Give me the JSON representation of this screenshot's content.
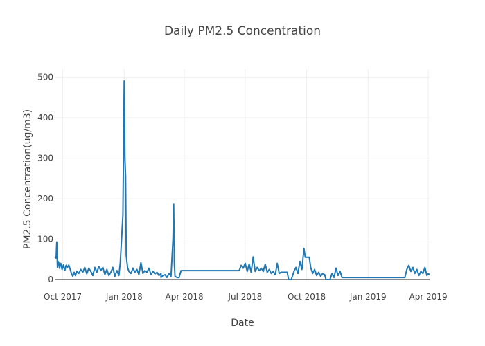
{
  "chart_data": {
    "type": "line",
    "title": "Daily PM2.5 Concentration",
    "xlabel": "Date",
    "ylabel": "PM2.5 Concentration(ug/m3)",
    "xlim": [
      "2017-09-20",
      "2019-04-03"
    ],
    "ylim": [
      0,
      520
    ],
    "grid": true,
    "x_ticks": [
      {
        "date": "2017-10-01",
        "label": "Oct 2017"
      },
      {
        "date": "2018-01-01",
        "label": "Jan 2018"
      },
      {
        "date": "2018-04-01",
        "label": "Apr 2018"
      },
      {
        "date": "2018-07-01",
        "label": "Jul 2018"
      },
      {
        "date": "2018-10-01",
        "label": "Oct 2018"
      },
      {
        "date": "2019-01-01",
        "label": "Jan 2019"
      },
      {
        "date": "2019-04-01",
        "label": "Apr 2019"
      }
    ],
    "y_ticks": [
      0,
      100,
      200,
      300,
      400,
      500
    ],
    "series": [
      {
        "color": "#1f77b4",
        "points": [
          [
            "2017-09-20",
            55
          ],
          [
            "2017-09-21",
            53
          ],
          [
            "2017-09-22",
            93
          ],
          [
            "2017-09-23",
            30
          ],
          [
            "2017-09-24",
            45
          ],
          [
            "2017-09-25",
            42
          ],
          [
            "2017-09-26",
            28
          ],
          [
            "2017-09-28",
            40
          ],
          [
            "2017-09-30",
            25
          ],
          [
            "2017-10-02",
            36
          ],
          [
            "2017-10-04",
            22
          ],
          [
            "2017-10-06",
            35
          ],
          [
            "2017-10-08",
            30
          ],
          [
            "2017-10-10",
            36
          ],
          [
            "2017-10-12",
            26
          ],
          [
            "2017-10-14",
            15
          ],
          [
            "2017-10-16",
            8
          ],
          [
            "2017-10-18",
            18
          ],
          [
            "2017-10-20",
            10
          ],
          [
            "2017-10-22",
            20
          ],
          [
            "2017-10-25",
            15
          ],
          [
            "2017-10-28",
            25
          ],
          [
            "2017-10-31",
            18
          ],
          [
            "2017-11-03",
            30
          ],
          [
            "2017-11-06",
            14
          ],
          [
            "2017-11-09",
            28
          ],
          [
            "2017-11-12",
            20
          ],
          [
            "2017-11-15",
            10
          ],
          [
            "2017-11-18",
            30
          ],
          [
            "2017-11-21",
            18
          ],
          [
            "2017-11-24",
            32
          ],
          [
            "2017-11-27",
            22
          ],
          [
            "2017-11-30",
            30
          ],
          [
            "2017-12-03",
            12
          ],
          [
            "2017-12-06",
            25
          ],
          [
            "2017-12-09",
            10
          ],
          [
            "2017-12-12",
            18
          ],
          [
            "2017-12-15",
            30
          ],
          [
            "2017-12-18",
            8
          ],
          [
            "2017-12-21",
            22
          ],
          [
            "2017-12-24",
            10
          ],
          [
            "2017-12-26",
            40
          ],
          [
            "2017-12-28",
            100
          ],
          [
            "2017-12-30",
            160
          ],
          [
            "2018-01-01",
            491
          ],
          [
            "2018-01-02",
            300
          ],
          [
            "2018-01-03",
            255
          ],
          [
            "2018-01-04",
            60
          ],
          [
            "2018-01-06",
            30
          ],
          [
            "2018-01-08",
            20
          ],
          [
            "2018-01-11",
            15
          ],
          [
            "2018-01-14",
            28
          ],
          [
            "2018-01-17",
            18
          ],
          [
            "2018-01-20",
            25
          ],
          [
            "2018-01-23",
            12
          ],
          [
            "2018-01-26",
            42
          ],
          [
            "2018-01-29",
            15
          ],
          [
            "2018-02-01",
            22
          ],
          [
            "2018-02-04",
            18
          ],
          [
            "2018-02-07",
            28
          ],
          [
            "2018-02-10",
            12
          ],
          [
            "2018-02-13",
            20
          ],
          [
            "2018-02-16",
            14
          ],
          [
            "2018-02-19",
            18
          ],
          [
            "2018-02-22",
            10
          ],
          [
            "2018-02-25",
            15
          ],
          [
            "2018-02-28",
            10
          ],
          [
            "2018-03-03",
            12
          ],
          [
            "2018-03-06",
            5
          ],
          [
            "2018-03-09",
            15
          ],
          [
            "2018-03-12",
            8
          ],
          [
            "2018-03-15",
            100
          ],
          [
            "2018-03-16",
            186
          ],
          [
            "2018-03-17",
            40
          ],
          [
            "2018-03-18",
            8
          ],
          [
            "2018-03-21",
            5
          ],
          [
            "2018-03-24",
            5
          ],
          [
            "2018-03-27",
            22
          ],
          [
            "2018-06-22",
            22
          ],
          [
            "2018-06-25",
            35
          ],
          [
            "2018-06-28",
            28
          ],
          [
            "2018-07-01",
            40
          ],
          [
            "2018-07-04",
            20
          ],
          [
            "2018-07-07",
            38
          ],
          [
            "2018-07-10",
            18
          ],
          [
            "2018-07-13",
            56
          ],
          [
            "2018-07-16",
            20
          ],
          [
            "2018-07-19",
            30
          ],
          [
            "2018-07-22",
            22
          ],
          [
            "2018-07-25",
            28
          ],
          [
            "2018-07-28",
            20
          ],
          [
            "2018-07-31",
            38
          ],
          [
            "2018-08-03",
            18
          ],
          [
            "2018-08-06",
            25
          ],
          [
            "2018-08-09",
            15
          ],
          [
            "2018-08-12",
            20
          ],
          [
            "2018-08-15",
            12
          ],
          [
            "2018-08-18",
            40
          ],
          [
            "2018-08-21",
            15
          ],
          [
            "2018-08-24",
            18
          ],
          [
            "2018-09-02",
            18
          ],
          [
            "2018-09-04",
            0
          ],
          [
            "2018-09-08",
            0
          ],
          [
            "2018-09-12",
            20
          ],
          [
            "2018-09-15",
            30
          ],
          [
            "2018-09-18",
            15
          ],
          [
            "2018-09-21",
            45
          ],
          [
            "2018-09-24",
            25
          ],
          [
            "2018-09-27",
            77
          ],
          [
            "2018-09-29",
            55
          ],
          [
            "2018-10-05",
            55
          ],
          [
            "2018-10-07",
            30
          ],
          [
            "2018-10-10",
            15
          ],
          [
            "2018-10-13",
            25
          ],
          [
            "2018-10-16",
            10
          ],
          [
            "2018-10-19",
            18
          ],
          [
            "2018-10-22",
            8
          ],
          [
            "2018-10-25",
            15
          ],
          [
            "2018-10-28",
            12
          ],
          [
            "2018-10-30",
            0
          ],
          [
            "2018-11-05",
            0
          ],
          [
            "2018-11-08",
            15
          ],
          [
            "2018-11-11",
            5
          ],
          [
            "2018-11-14",
            28
          ],
          [
            "2018-11-17",
            10
          ],
          [
            "2018-11-20",
            20
          ],
          [
            "2018-11-23",
            5
          ],
          [
            "2018-02-25",
            5
          ],
          [
            "2019-02-25",
            5
          ],
          [
            "2019-02-28",
            25
          ],
          [
            "2019-03-03",
            35
          ],
          [
            "2019-03-06",
            20
          ],
          [
            "2019-03-09",
            30
          ],
          [
            "2019-03-12",
            15
          ],
          [
            "2019-03-15",
            25
          ],
          [
            "2019-03-18",
            10
          ],
          [
            "2019-03-21",
            20
          ],
          [
            "2019-03-24",
            15
          ],
          [
            "2019-03-27",
            30
          ],
          [
            "2019-03-30",
            10
          ],
          [
            "2019-04-01",
            14
          ],
          [
            "2019-04-03",
            13
          ]
        ]
      }
    ]
  }
}
